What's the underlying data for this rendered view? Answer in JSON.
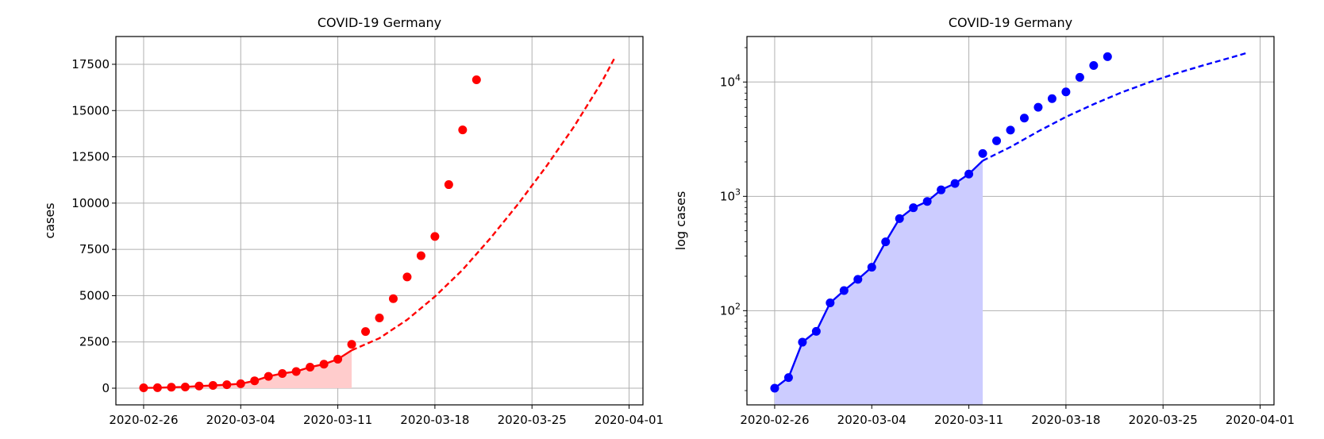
{
  "chart_data": [
    {
      "type": "scatter",
      "title": "COVID-19 Germany",
      "xlabel": "",
      "ylabel": "cases",
      "yscale": "linear",
      "xlim": [
        "2020-02-24",
        "2020-04-02"
      ],
      "ylim": [
        -900,
        19000
      ],
      "xticks": [
        "2020-02-26",
        "2020-03-04",
        "2020-03-11",
        "2020-03-18",
        "2020-03-25",
        "2020-04-01"
      ],
      "yticks": [
        0,
        2500,
        5000,
        7500,
        10000,
        12500,
        15000,
        17500
      ],
      "ytick_labels": [
        "0",
        "2500",
        "5000",
        "7500",
        "10000",
        "12500",
        "15000",
        "17500"
      ],
      "grid": true,
      "color": "#ff0000",
      "fill_color": "#ffcccc",
      "observed": {
        "x": [
          "2020-02-26",
          "2020-02-27",
          "2020-02-28",
          "2020-02-29",
          "2020-03-01",
          "2020-03-02",
          "2020-03-03",
          "2020-03-04",
          "2020-03-05",
          "2020-03-06",
          "2020-03-07",
          "2020-03-08",
          "2020-03-09",
          "2020-03-10",
          "2020-03-11",
          "2020-03-12",
          "2020-03-13",
          "2020-03-14",
          "2020-03-15",
          "2020-03-16",
          "2020-03-17",
          "2020-03-18",
          "2020-03-19",
          "2020-03-20",
          "2020-03-21"
        ],
        "y": [
          21,
          26,
          53,
          66,
          117,
          150,
          188,
          240,
          400,
          639,
          795,
          902,
          1139,
          1296,
          1567,
          2369,
          3062,
          3795,
          4838,
          6012,
          7156,
          8198,
          10999,
          13957,
          16662
        ]
      },
      "fit": {
        "x": [
          "2020-02-26",
          "2020-02-27",
          "2020-02-28",
          "2020-02-29",
          "2020-03-01",
          "2020-03-02",
          "2020-03-03",
          "2020-03-04",
          "2020-03-05",
          "2020-03-06",
          "2020-03-07",
          "2020-03-08",
          "2020-03-09",
          "2020-03-10",
          "2020-03-11",
          "2020-03-12"
        ],
        "y": [
          21,
          26,
          53,
          66,
          117,
          150,
          188,
          240,
          400,
          639,
          795,
          902,
          1139,
          1296,
          1567,
          2050
        ]
      },
      "forecast": {
        "x": [
          "2020-03-12",
          "2020-03-14",
          "2020-03-16",
          "2020-03-18",
          "2020-03-20",
          "2020-03-22",
          "2020-03-24",
          "2020-03-26",
          "2020-03-28",
          "2020-03-30",
          "2020-03-31"
        ],
        "y": [
          2050,
          2700,
          3700,
          4950,
          6400,
          8100,
          9950,
          11950,
          14100,
          16500,
          17900
        ]
      },
      "shaded_range": [
        "2020-02-26",
        "2020-03-12"
      ]
    },
    {
      "type": "scatter",
      "title": "COVID-19 Germany",
      "xlabel": "",
      "ylabel": "log cases",
      "yscale": "log",
      "xlim": [
        "2020-02-24",
        "2020-04-02"
      ],
      "ylim": [
        15,
        25000
      ],
      "xticks": [
        "2020-02-26",
        "2020-03-04",
        "2020-03-11",
        "2020-03-18",
        "2020-03-25",
        "2020-04-01"
      ],
      "yticks": [
        100,
        1000,
        10000
      ],
      "ytick_labels": [
        "10",
        "10",
        "10"
      ],
      "ytick_exponents": [
        "2",
        "3",
        "4"
      ],
      "grid": true,
      "color": "#0000ff",
      "fill_color": "#ccccff",
      "observed": {
        "x": [
          "2020-02-26",
          "2020-02-27",
          "2020-02-28",
          "2020-02-29",
          "2020-03-01",
          "2020-03-02",
          "2020-03-03",
          "2020-03-04",
          "2020-03-05",
          "2020-03-06",
          "2020-03-07",
          "2020-03-08",
          "2020-03-09",
          "2020-03-10",
          "2020-03-11",
          "2020-03-12",
          "2020-03-13",
          "2020-03-14",
          "2020-03-15",
          "2020-03-16",
          "2020-03-17",
          "2020-03-18",
          "2020-03-19",
          "2020-03-20",
          "2020-03-21"
        ],
        "y": [
          21,
          26,
          53,
          66,
          117,
          150,
          188,
          240,
          400,
          639,
          795,
          902,
          1139,
          1296,
          1567,
          2369,
          3062,
          3795,
          4838,
          6012,
          7156,
          8198,
          10999,
          13957,
          16662
        ]
      },
      "fit": {
        "x": [
          "2020-02-26",
          "2020-02-27",
          "2020-02-28",
          "2020-02-29",
          "2020-03-01",
          "2020-03-02",
          "2020-03-03",
          "2020-03-04",
          "2020-03-05",
          "2020-03-06",
          "2020-03-07",
          "2020-03-08",
          "2020-03-09",
          "2020-03-10",
          "2020-03-11",
          "2020-03-12"
        ],
        "y": [
          21,
          26,
          53,
          66,
          117,
          150,
          188,
          240,
          400,
          639,
          795,
          902,
          1139,
          1296,
          1567,
          2050
        ]
      },
      "forecast": {
        "x": [
          "2020-03-12",
          "2020-03-14",
          "2020-03-16",
          "2020-03-18",
          "2020-03-20",
          "2020-03-22",
          "2020-03-24",
          "2020-03-26",
          "2020-03-28",
          "2020-03-30",
          "2020-03-31"
        ],
        "y": [
          2050,
          2700,
          3700,
          4950,
          6400,
          8100,
          9950,
          11950,
          14100,
          16500,
          17900
        ]
      },
      "shaded_range": [
        "2020-02-26",
        "2020-03-12"
      ]
    }
  ]
}
